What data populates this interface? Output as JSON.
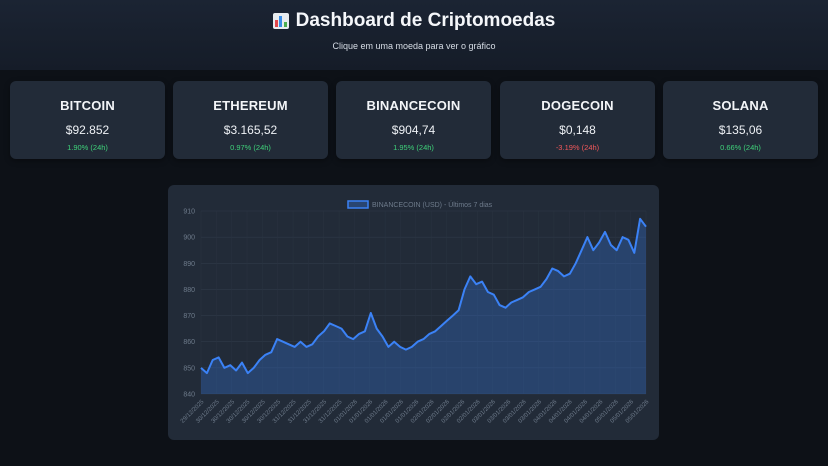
{
  "header": {
    "icon": "bar-chart-emoji-icon",
    "title": "Dashboard de Criptomoedas",
    "subtitle": "Clique em uma moeda para ver o gráfico"
  },
  "colors": {
    "background": "#0d1117",
    "card": "#222b38",
    "up": "#3fd27a",
    "down": "#f2585b",
    "line": "#3b82f6"
  },
  "cards": [
    {
      "name": "BITCOIN",
      "price": "$92.852",
      "change": "1.90% (24h)",
      "direction": "up"
    },
    {
      "name": "ETHEREUM",
      "price": "$3.165,52",
      "change": "0.97% (24h)",
      "direction": "up"
    },
    {
      "name": "BINANCECOIN",
      "price": "$904,74",
      "change": "1.95% (24h)",
      "direction": "up"
    },
    {
      "name": "DOGECOIN",
      "price": "$0,148",
      "change": "-3.19% (24h)",
      "direction": "down"
    },
    {
      "name": "SOLANA",
      "price": "$135,06",
      "change": "0.66% (24h)",
      "direction": "up"
    }
  ],
  "chart_data": {
    "type": "area",
    "legend": "BINANCECOIN (USD) - Últimos 7 dias",
    "ylim": [
      840,
      910
    ],
    "yticks": [
      840,
      850,
      860,
      870,
      880,
      890,
      900,
      910
    ],
    "xticks": [
      "29/12/2025",
      "30/12/2025",
      "30/12/2025",
      "30/12/2025",
      "30/12/2025",
      "30/12/2025",
      "31/12/2025",
      "31/12/2025",
      "31/12/2025",
      "31/12/2025",
      "01/01/2026",
      "01/01/2026",
      "01/01/2026",
      "01/01/2026",
      "01/01/2026",
      "02/01/2026",
      "02/01/2026",
      "02/01/2026",
      "02/01/2026",
      "03/01/2026",
      "03/01/2026",
      "03/01/2026",
      "03/01/2026",
      "04/01/2026",
      "04/01/2026",
      "04/01/2026",
      "04/01/2026",
      "05/01/2026",
      "05/01/2026",
      "05/01/2026"
    ],
    "values": [
      850,
      848,
      853,
      854,
      850,
      851,
      849,
      852,
      848,
      850,
      853,
      855,
      856,
      861,
      860,
      859,
      858,
      860,
      858,
      859,
      862,
      864,
      867,
      866,
      865,
      862,
      861,
      863,
      864,
      871,
      865,
      862,
      858,
      860,
      858,
      857,
      858,
      860,
      861,
      863,
      864,
      866,
      868,
      870,
      872,
      880,
      885,
      882,
      883,
      879,
      878,
      874,
      873,
      875,
      876,
      877,
      879,
      880,
      881,
      884,
      888,
      887,
      885,
      886,
      890,
      895,
      900,
      895,
      898,
      902,
      897,
      895,
      900,
      899,
      894,
      907,
      904
    ]
  }
}
